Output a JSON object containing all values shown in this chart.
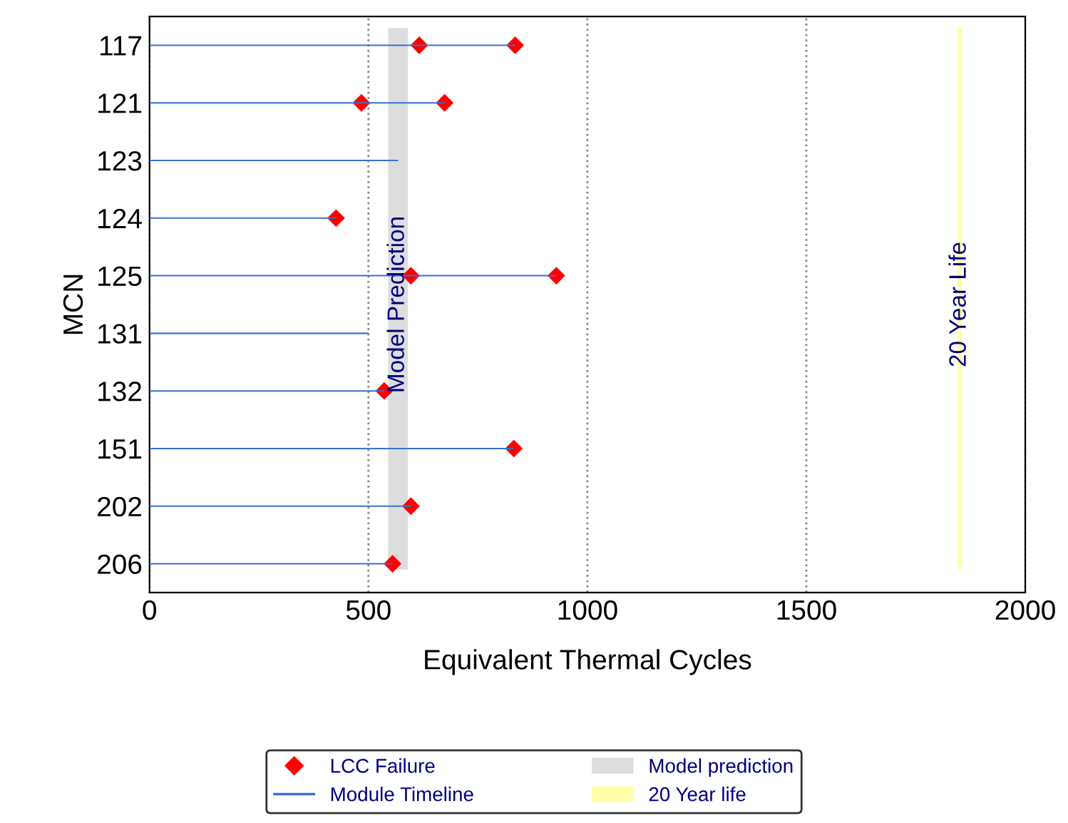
{
  "chart_data": {
    "type": "bar",
    "orientation": "horizontal",
    "xlabel": "Equivalent Thermal Cycles",
    "ylabel": "MCN",
    "categories": [
      "117",
      "121",
      "123",
      "124",
      "125",
      "131",
      "132",
      "151",
      "202",
      "206"
    ],
    "series": [
      {
        "name": "LCC Failure",
        "type": "scatter",
        "color": "#ff0000",
        "marker": "diamond",
        "x": [
          "117",
          "117",
          "121",
          "121",
          "124",
          "125",
          "125",
          "132",
          "151",
          "202",
          "206"
        ],
        "values": [
          616,
          835,
          484,
          674,
          426,
          597,
          929,
          536,
          832,
          597,
          555
        ]
      },
      {
        "name": "Module Timeline",
        "color": "#3a6fd0",
        "values": [
          835,
          674,
          568,
          426,
          929,
          500,
          536,
          832,
          597,
          555
        ]
      }
    ],
    "bands": [
      {
        "axis": "x",
        "from": 545,
        "to": 590,
        "label": "Model prediction",
        "color": "#dddddd"
      },
      {
        "axis": "x",
        "from": 1845,
        "to": 1855,
        "label": "20 Year life",
        "color": "#ffffaa"
      }
    ],
    "annotations": [
      {
        "text": "Model Prediction",
        "x": 567,
        "y": "125"
      },
      {
        "text": "20 Year Life",
        "x": 1850,
        "y": "125"
      }
    ],
    "xlim": [
      0,
      2000
    ],
    "xticks": [
      0,
      500,
      1000,
      1500,
      2000
    ],
    "grid": "x",
    "legend": "bottom"
  }
}
